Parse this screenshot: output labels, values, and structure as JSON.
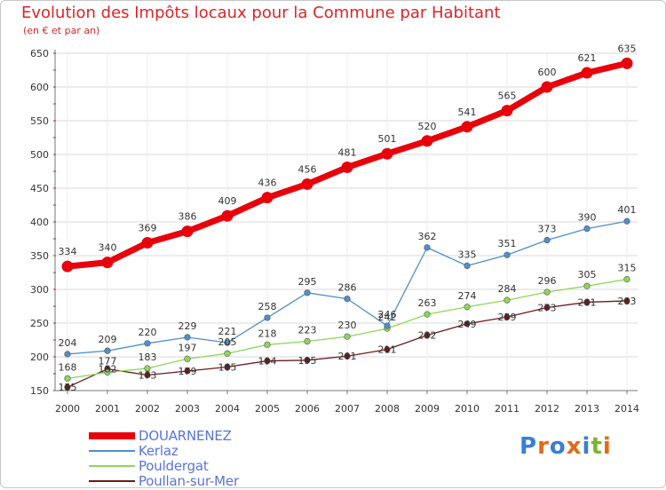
{
  "title": "Evolution des Impôts locaux pour la Commune par Habitant",
  "subtitle": "(en € et par an)",
  "logo_text": "Proxiti",
  "colors": {
    "title": "#d9262c",
    "grid": "#d8d8d8",
    "text": "#333333",
    "legend_text": "#5a73d8"
  },
  "chart_data": {
    "type": "line",
    "x": [
      "2000",
      "2001",
      "2002",
      "2003",
      "2004",
      "2005",
      "2006",
      "2007",
      "2008",
      "2009",
      "2010",
      "2011",
      "2012",
      "2013",
      "2014"
    ],
    "ylim": [
      150,
      650
    ],
    "yticks": [
      150,
      200,
      250,
      300,
      350,
      400,
      450,
      500,
      550,
      600,
      650
    ],
    "grid": true,
    "legend_position": "bottom-left",
    "series": [
      {
        "name": "DOUARNENEZ",
        "color": "#e8000b",
        "values": [
          334,
          340,
          369,
          386,
          409,
          436,
          456,
          481,
          501,
          520,
          541,
          565,
          600,
          621,
          635
        ]
      },
      {
        "name": "Kerlaz",
        "color": "#4f8fce",
        "values": [
          204,
          209,
          220,
          229,
          221,
          258,
          295,
          286,
          246,
          362,
          335,
          351,
          373,
          390,
          401
        ]
      },
      {
        "name": "Pouldergat",
        "color": "#8ed65a",
        "values": [
          168,
          177,
          183,
          197,
          205,
          218,
          223,
          230,
          242,
          263,
          274,
          284,
          296,
          305,
          315
        ]
      },
      {
        "name": "Poullan-sur-Mer",
        "color": "#6b1a1e",
        "values": [
          155,
          182,
          173,
          179,
          185,
          194,
          195,
          201,
          211,
          232,
          249,
          259,
          273,
          281,
          283
        ]
      }
    ]
  }
}
